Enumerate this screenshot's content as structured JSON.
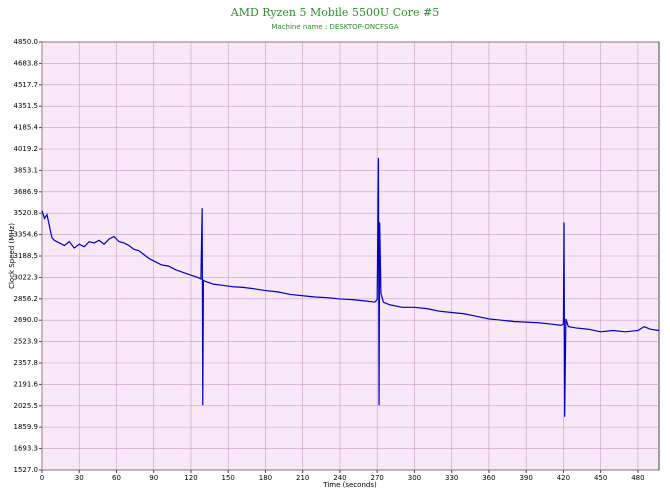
{
  "chart_data": {
    "type": "line",
    "title": "AMD Ryzen 5 Mobile 5500U Core #5",
    "subtitle": "Machine name : DESKTOP-ONCFSGA",
    "x_label": "Time (seconds)",
    "y_label": "Clock Speed (MHz)",
    "xlim": [
      0,
      497
    ],
    "ylim": [
      1527,
      4850
    ],
    "xticks": [
      0,
      30,
      60,
      90,
      120,
      150,
      180,
      210,
      240,
      270,
      300,
      330,
      360,
      390,
      420,
      450,
      480
    ],
    "yticks": [
      {
        "value": 1527,
        "label": "1527.0"
      },
      1693.3,
      1859.9,
      2025.5,
      2191.6,
      2357.8,
      2523.9,
      {
        "value": 2690,
        "label": "2690.0"
      },
      2856.2,
      3022.3,
      3188.5,
      3354.6,
      3520.8,
      3686.9,
      3853.1,
      4019.2,
      4185.4,
      4351.5,
      4517.7,
      4683.8,
      {
        "value": 4850,
        "label": "4850.0"
      }
    ],
    "grid": true,
    "x": [
      0,
      2,
      4,
      6,
      8,
      10,
      14,
      18,
      22,
      26,
      30,
      34,
      38,
      42,
      46,
      50,
      54,
      58,
      62,
      66,
      70,
      74,
      78,
      82,
      86,
      90,
      96,
      102,
      108,
      114,
      120,
      126,
      128,
      129,
      129.5,
      130,
      132,
      138,
      146,
      154,
      162,
      170,
      180,
      190,
      200,
      210,
      220,
      230,
      240,
      250,
      260,
      268,
      270,
      271,
      271.5,
      272,
      273,
      275,
      280,
      290,
      300,
      310,
      320,
      330,
      340,
      350,
      360,
      370,
      380,
      390,
      400,
      410,
      418,
      420,
      420.5,
      421,
      422,
      424,
      430,
      440,
      450,
      460,
      470,
      480,
      485,
      490,
      497
    ],
    "series": [
      {
        "color": "#0000c0",
        "values": [
          3540,
          3480,
          3510,
          3420,
          3330,
          3310,
          3290,
          3270,
          3300,
          3250,
          3280,
          3260,
          3300,
          3290,
          3310,
          3280,
          3320,
          3340,
          3300,
          3290,
          3270,
          3240,
          3230,
          3200,
          3170,
          3150,
          3120,
          3110,
          3080,
          3060,
          3040,
          3020,
          3010,
          3560,
          2030,
          3000,
          2990,
          2970,
          2960,
          2950,
          2945,
          2935,
          2920,
          2910,
          2890,
          2880,
          2870,
          2865,
          2855,
          2850,
          2840,
          2830,
          2850,
          3950,
          2030,
          3450,
          2900,
          2830,
          2810,
          2790,
          2790,
          2780,
          2760,
          2750,
          2740,
          2720,
          2700,
          2690,
          2680,
          2675,
          2670,
          2660,
          2650,
          2660,
          3450,
          1940,
          2700,
          2640,
          2630,
          2620,
          2600,
          2610,
          2600,
          2610,
          2640,
          2620,
          2610
        ]
      }
    ]
  }
}
